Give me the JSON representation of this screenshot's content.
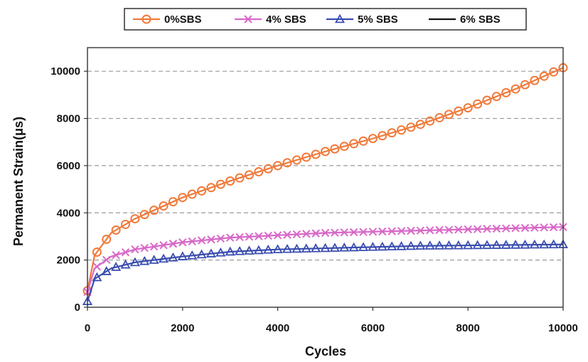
{
  "chart_data": {
    "type": "line",
    "title": "",
    "xlabel": "Cycles",
    "ylabel": "Permanent Strain(μs)",
    "xlim": [
      0,
      10000
    ],
    "ylim": [
      0,
      11000
    ],
    "xticks": [
      0,
      2000,
      4000,
      6000,
      8000,
      10000
    ],
    "yticks": [
      0,
      2000,
      4000,
      6000,
      8000,
      10000
    ],
    "grid": "horizontal dashed",
    "legend_position": "top",
    "series": [
      {
        "name": "0%SBS",
        "color": "#f07a3a",
        "marker": "circle",
        "x": [
          0,
          150,
          500,
          1000,
          2000,
          3000,
          4000,
          5000,
          6000,
          7000,
          8000,
          9000,
          10000
        ],
        "y": [
          700,
          2200,
          3150,
          3750,
          4650,
          5350,
          6000,
          6600,
          7150,
          7750,
          8450,
          9250,
          10150
        ]
      },
      {
        "name": "4% SBS",
        "color": "#d868c8",
        "marker": "x",
        "x": [
          0,
          150,
          500,
          1000,
          2000,
          3000,
          4000,
          5000,
          6000,
          7000,
          8000,
          9000,
          10000
        ],
        "y": [
          650,
          1650,
          2150,
          2450,
          2750,
          2950,
          3050,
          3150,
          3200,
          3250,
          3300,
          3350,
          3400
        ]
      },
      {
        "name": "5% SBS",
        "color": "#3a4db0",
        "marker": "triangle",
        "x": [
          0,
          150,
          500,
          1000,
          2000,
          3000,
          4000,
          5000,
          6000,
          7000,
          8000,
          9000,
          10000
        ],
        "y": [
          250,
          1200,
          1650,
          1900,
          2150,
          2350,
          2450,
          2500,
          2550,
          2600,
          2620,
          2640,
          2660
        ]
      },
      {
        "name": "6% SBS",
        "color": "#111111",
        "marker": "none",
        "x": [],
        "y": []
      }
    ]
  }
}
